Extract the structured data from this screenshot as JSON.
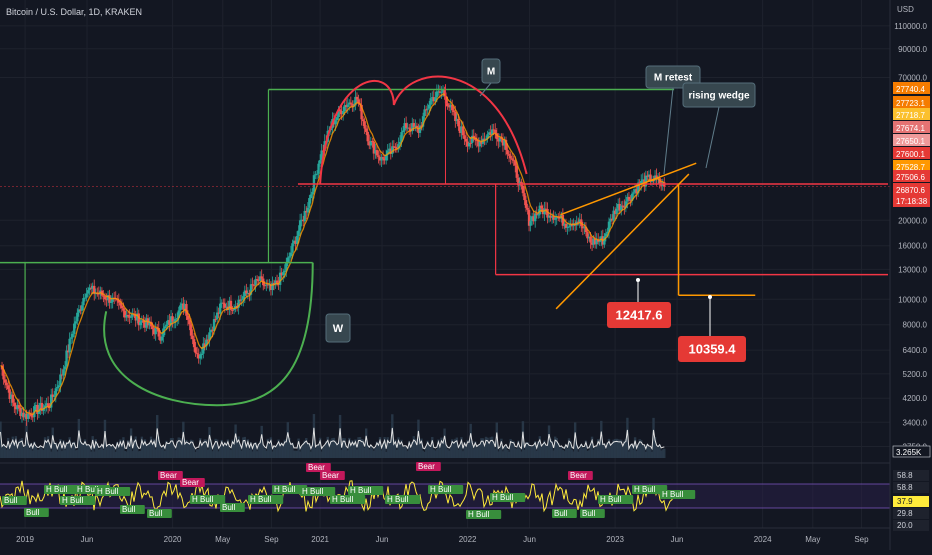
{
  "header": {
    "symbol": "Bitcoin / U.S. Dollar, 1D, KRAKEN"
  },
  "colors": {
    "background": "#131722",
    "grid": "#1e222d",
    "candle_up": "#26a69a",
    "candle_down": "#ef5350",
    "ema_line": "#ff9800",
    "pattern_green": "#4caf50",
    "pattern_red": "#f23645",
    "wedge_orange": "#ff9800",
    "oscillator": "#ffeb3b",
    "callout_bg": "#37474f"
  },
  "chart_data": [
    {
      "type": "line",
      "title": "Bitcoin / U.S. Dollar, 1D, KRAKEN",
      "scale": "log",
      "currency": "USD",
      "y_ticks": [
        110000,
        90000,
        70000,
        20000,
        16000,
        13000,
        10000,
        8000,
        6400,
        5200,
        4200,
        3400,
        2750
      ],
      "x_ticks": [
        "2019",
        "Jun",
        "2020",
        "May",
        "Sep",
        "2021",
        "Jun",
        "2022",
        "Jun",
        "2023",
        "Jun",
        "2024",
        "May",
        "Sep"
      ],
      "series": [
        {
          "x": [
            "2018-11",
            "2018-12",
            "2019-01",
            "2019-02",
            "2019-03",
            "2019-04",
            "2019-05",
            "2019-06",
            "2019-07",
            "2019-08",
            "2019-09",
            "2019-10",
            "2019-11",
            "2019-12",
            "2020-01",
            "2020-02",
            "2020-03",
            "2020-04",
            "2020-05",
            "2020-06",
            "2020-07",
            "2020-08",
            "2020-09",
            "2020-10",
            "2020-11",
            "2020-12",
            "2021-01",
            "2021-02",
            "2021-03",
            "2021-04",
            "2021-05",
            "2021-06",
            "2021-07",
            "2021-08",
            "2021-09",
            "2021-10",
            "2021-11",
            "2021-12",
            "2022-01",
            "2022-02",
            "2022-03",
            "2022-04",
            "2022-05",
            "2022-06",
            "2022-07",
            "2022-08",
            "2022-09",
            "2022-10",
            "2022-11",
            "2022-12",
            "2023-01",
            "2023-02",
            "2023-03",
            "2023-04",
            "2023-05"
          ],
          "y": [
            5600,
            4000,
            3600,
            3800,
            4000,
            5200,
            8000,
            11000,
            10500,
            10000,
            9000,
            8500,
            8000,
            7300,
            8500,
            9600,
            6000,
            7500,
            9500,
            9500,
            10500,
            11800,
            10800,
            12500,
            17000,
            23000,
            35000,
            47000,
            55000,
            58000,
            40000,
            34000,
            37000,
            46000,
            44000,
            58000,
            62000,
            48000,
            40000,
            40000,
            44000,
            40000,
            30000,
            20000,
            22000,
            21000,
            19500,
            20000,
            16500,
            16800,
            22000,
            24000,
            27500,
            29000,
            26870
          ]
        }
      ],
      "annotations": [
        {
          "text": "M"
        },
        {
          "text": "M retest"
        },
        {
          "text": "rising wedge"
        },
        {
          "text": "W"
        },
        {
          "text": "12417.6"
        },
        {
          "text": "10359.4"
        }
      ],
      "price_labels": [
        "27740.4",
        "27723.1",
        "27718.7",
        "27674.1",
        "27650.1",
        "27600.1",
        "27528.7",
        "27506.6"
      ],
      "last_price": "26870.6",
      "countdown": "17:18:38",
      "volume_label": "3.265K",
      "oscillator_levels": [
        "58.8",
        "58.8",
        "37.9",
        "29.8",
        "20.0"
      ],
      "oscillator_tags": {
        "bull": "Bull",
        "h_bull": "H Bull",
        "bear": "Bear"
      }
    }
  ]
}
